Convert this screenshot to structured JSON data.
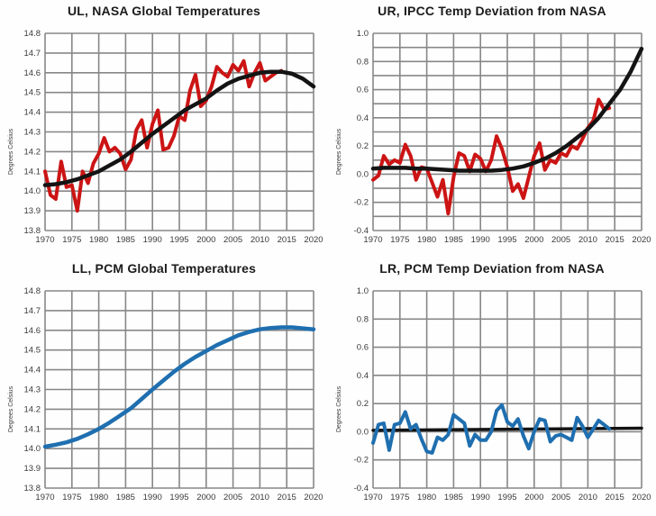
{
  "page": {
    "background": "#fefefe",
    "description": "Four-panel temperature comparison figure"
  },
  "colors": {
    "red_series": "#cc1414",
    "blue_series": "#1f6fb0",
    "black_series": "#141414",
    "grid": "#878787",
    "tick_text": "#3a3a3a",
    "title_text": "#1b1b1b"
  },
  "chart_data": [
    {
      "id": "ul",
      "type": "line",
      "title": "UL, NASA Global Temperatures",
      "ylabel": "Degrees Celsius",
      "xlim": [
        1970,
        2020
      ],
      "xtick_step": 5,
      "ylim": [
        13.8,
        14.8
      ],
      "ytick_step": 0.1,
      "ygrid_step": 0.1,
      "grid": true,
      "legend": "none",
      "series": [
        {
          "name": "nasa-annual",
          "color": "#cc1414",
          "width": 4,
          "x_start": 1970,
          "x_step": 1,
          "values": [
            14.1,
            13.98,
            13.96,
            14.15,
            14.02,
            14.03,
            13.9,
            14.1,
            14.04,
            14.14,
            14.19,
            14.27,
            14.2,
            14.22,
            14.19,
            14.11,
            14.16,
            14.31,
            14.36,
            14.22,
            14.34,
            14.41,
            14.21,
            14.22,
            14.28,
            14.38,
            14.36,
            14.51,
            14.59,
            14.43,
            14.46,
            14.53,
            14.63,
            14.6,
            14.58,
            14.64,
            14.61,
            14.66,
            14.53,
            14.6,
            14.65,
            14.56,
            14.58,
            14.6,
            14.61
          ]
        },
        {
          "name": "smoothed-trend",
          "color": "#141414",
          "width": 4.5,
          "x_start": 1970,
          "x_step": 2,
          "values": [
            14.03,
            14.035,
            14.045,
            14.06,
            14.08,
            14.1,
            14.13,
            14.16,
            14.2,
            14.245,
            14.29,
            14.33,
            14.37,
            14.41,
            14.44,
            14.47,
            14.51,
            14.545,
            14.57,
            14.585,
            14.6,
            14.605,
            14.605,
            14.595,
            14.57,
            14.53
          ]
        }
      ]
    },
    {
      "id": "ur",
      "type": "line",
      "title": "UR, IPCC Temp Deviation from NASA",
      "ylabel": "Degrees Celsius",
      "xlim": [
        1970,
        2020
      ],
      "xtick_step": 5,
      "ylim": [
        -0.4,
        1.0
      ],
      "ytick_step": 0.2,
      "ygrid_step": 0.1,
      "grid": true,
      "legend": "none",
      "series": [
        {
          "name": "ipcc-deviation-annual",
          "color": "#cc1414",
          "width": 4,
          "x_start": 1970,
          "x_step": 1,
          "values": [
            -0.04,
            -0.01,
            0.13,
            0.07,
            0.1,
            0.08,
            0.21,
            0.13,
            -0.04,
            0.05,
            0.04,
            -0.06,
            -0.16,
            -0.04,
            -0.28,
            -0.02,
            0.15,
            0.13,
            0.02,
            0.14,
            0.11,
            0.02,
            0.1,
            0.27,
            0.18,
            0.05,
            -0.12,
            -0.07,
            -0.17,
            -0.02,
            0.13,
            0.22,
            0.03,
            0.1,
            0.08,
            0.15,
            0.13,
            0.2,
            0.18,
            0.25,
            0.33,
            0.38,
            0.53,
            0.46,
            0.47
          ]
        },
        {
          "name": "smoothed-trend",
          "color": "#141414",
          "width": 4.5,
          "x_start": 1970,
          "x_step": 2,
          "values": [
            0.04,
            0.045,
            0.045,
            0.045,
            0.04,
            0.04,
            0.035,
            0.03,
            0.025,
            0.025,
            0.025,
            0.025,
            0.03,
            0.04,
            0.055,
            0.08,
            0.11,
            0.15,
            0.2,
            0.26,
            0.32,
            0.4,
            0.5,
            0.6,
            0.73,
            0.89
          ]
        }
      ]
    },
    {
      "id": "ll",
      "type": "line",
      "title": "LL, PCM Global Temperatures",
      "ylabel": "Degrees Celsius",
      "xlim": [
        1970,
        2020
      ],
      "xtick_step": 5,
      "ylim": [
        13.8,
        14.8
      ],
      "ytick_step": 0.1,
      "ygrid_step": 0.1,
      "grid": true,
      "legend": "none",
      "series": [
        {
          "name": "pcm-model",
          "color": "#1f6fb0",
          "width": 4.5,
          "x_start": 1970,
          "x_step": 2,
          "values": [
            14.01,
            14.02,
            14.032,
            14.05,
            14.073,
            14.1,
            14.132,
            14.168,
            14.205,
            14.252,
            14.3,
            14.345,
            14.39,
            14.43,
            14.465,
            14.495,
            14.525,
            14.55,
            14.575,
            14.592,
            14.605,
            14.612,
            14.615,
            14.615,
            14.61,
            14.605
          ]
        }
      ]
    },
    {
      "id": "lr",
      "type": "line",
      "title": "LR, PCM Temp Deviation from NASA",
      "ylabel": "Degrees Celsius",
      "xlim": [
        1970,
        2020
      ],
      "xtick_step": 5,
      "ylim": [
        -0.4,
        1.0
      ],
      "ytick_step": 0.2,
      "ygrid_step": 0.2,
      "grid": true,
      "legend": "none",
      "series": [
        {
          "name": "flat-trend",
          "color": "#141414",
          "width": 3.5,
          "x_start": 1970,
          "x_step": 50,
          "values": [
            0.01,
            0.025
          ]
        },
        {
          "name": "pcm-deviation-annual",
          "color": "#1f6fb0",
          "width": 4,
          "x_start": 1970,
          "x_step": 1,
          "values": [
            -0.08,
            0.05,
            0.06,
            -0.13,
            0.05,
            0.06,
            0.14,
            0.02,
            0.05,
            -0.05,
            -0.14,
            -0.15,
            -0.04,
            -0.06,
            -0.02,
            0.12,
            0.09,
            0.06,
            -0.1,
            -0.02,
            -0.06,
            -0.06,
            0.0,
            0.15,
            0.19,
            0.07,
            0.04,
            0.09,
            -0.03,
            -0.12,
            0.0,
            0.09,
            0.08,
            -0.07,
            -0.03,
            -0.02,
            -0.04,
            -0.06,
            0.1,
            0.04,
            -0.04,
            0.02,
            0.08,
            0.05,
            0.02
          ]
        }
      ]
    }
  ]
}
